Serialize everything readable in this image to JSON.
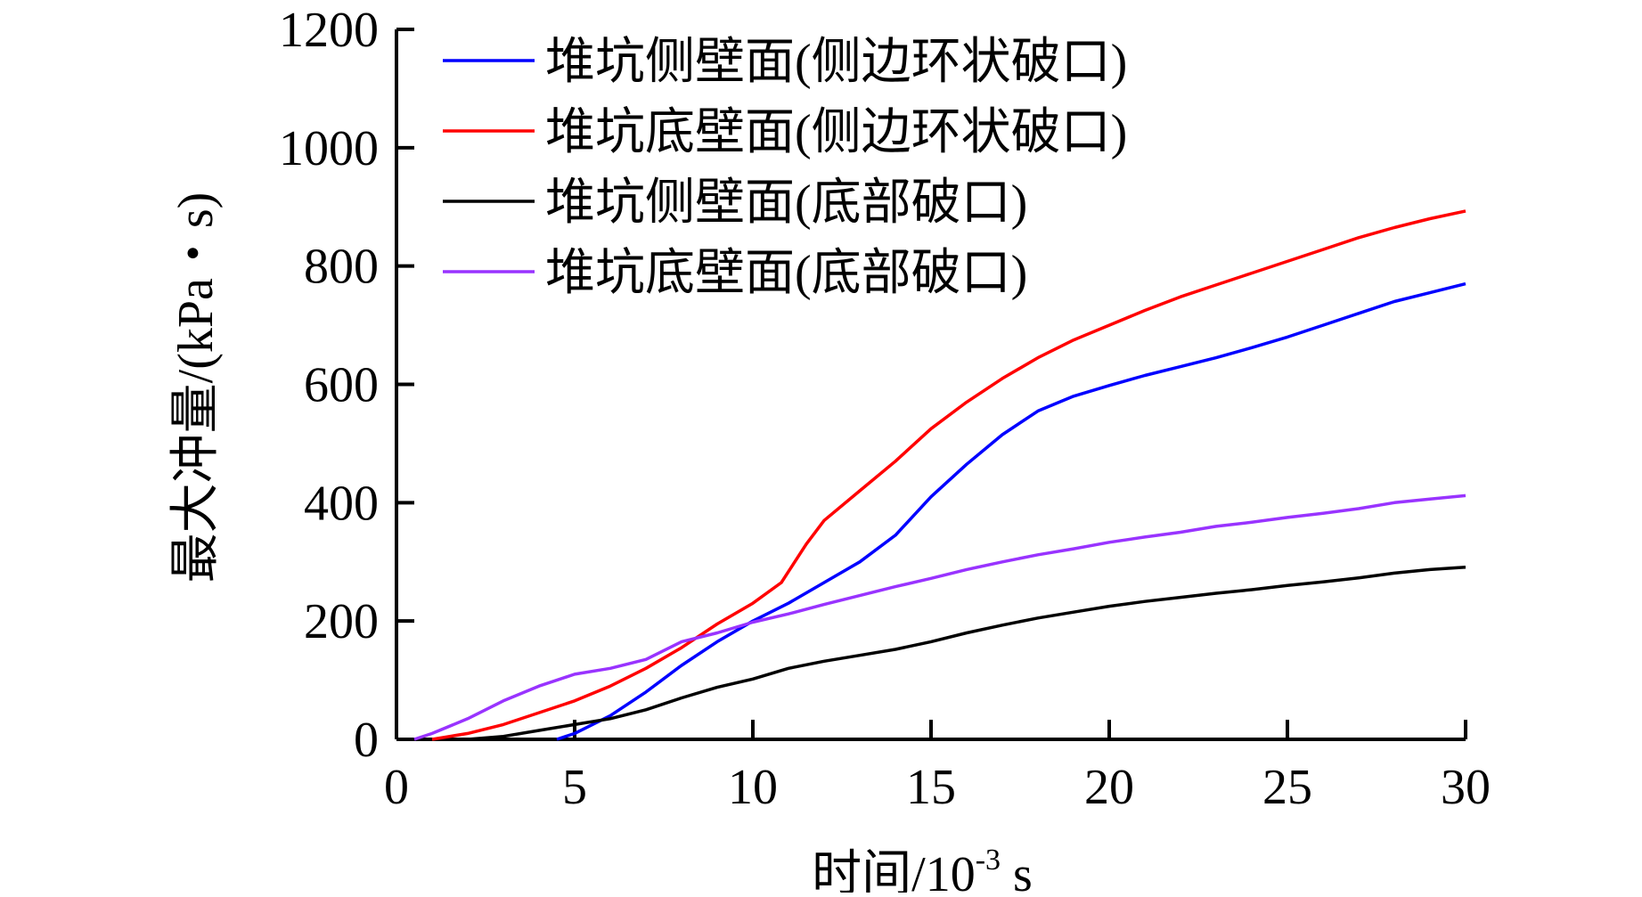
{
  "chart_data": {
    "type": "line",
    "xlabel": "时间/10",
    "xlabel_exponent": "-3",
    "xlabel_unit": " s",
    "ylabel": "最大冲量/(kPa・s)",
    "xlim": [
      0,
      30
    ],
    "ylim": [
      0,
      1200
    ],
    "x_ticks": [
      "0",
      "5",
      "10",
      "15",
      "20",
      "25",
      "30"
    ],
    "y_ticks": [
      "0",
      "200",
      "400",
      "600",
      "800",
      "1000",
      "1200"
    ],
    "grid": false,
    "legend_position": "top-left",
    "series": [
      {
        "name": "堆坑侧壁面(侧边环状破口)",
        "color": "#0000ff",
        "x": [
          4.5,
          5,
          6,
          7,
          8,
          9,
          10,
          11,
          12,
          13,
          14,
          15,
          16,
          17,
          18,
          19,
          20,
          21,
          22,
          23,
          24,
          25,
          26,
          27,
          28,
          29,
          30
        ],
        "y": [
          0,
          10,
          40,
          80,
          125,
          165,
          200,
          230,
          265,
          300,
          345,
          410,
          465,
          515,
          555,
          580,
          598,
          615,
          630,
          645,
          662,
          680,
          700,
          720,
          740,
          755,
          770
        ]
      },
      {
        "name": "堆坑底壁面(侧边环状破口)",
        "color": "#ff0000",
        "x": [
          1,
          2,
          3,
          4,
          5,
          6,
          7,
          8,
          9,
          10,
          10.8,
          11.5,
          12,
          13,
          14,
          15,
          16,
          17,
          18,
          19,
          20,
          21,
          22,
          23,
          24,
          25,
          26,
          27,
          28,
          29,
          30
        ],
        "y": [
          0,
          10,
          25,
          45,
          65,
          90,
          120,
          155,
          195,
          230,
          265,
          330,
          370,
          420,
          470,
          525,
          570,
          610,
          645,
          675,
          700,
          725,
          748,
          768,
          788,
          808,
          828,
          848,
          865,
          880,
          893
        ]
      },
      {
        "name": "堆坑侧壁面(底部破口)",
        "color": "#000000",
        "x": [
          2,
          3,
          4,
          5,
          6,
          7,
          8,
          9,
          10,
          11,
          12,
          13,
          14,
          15,
          16,
          17,
          18,
          19,
          20,
          21,
          22,
          23,
          24,
          25,
          26,
          27,
          28,
          29,
          30
        ],
        "y": [
          0,
          5,
          15,
          25,
          35,
          50,
          70,
          88,
          102,
          120,
          132,
          142,
          152,
          165,
          180,
          193,
          205,
          215,
          225,
          233,
          240,
          247,
          253,
          260,
          266,
          273,
          281,
          287,
          291
        ]
      },
      {
        "name": "堆坑底壁面(底部破口)",
        "color": "#9933ff",
        "x": [
          0.5,
          1,
          2,
          3,
          4,
          5,
          6,
          7,
          8,
          9,
          10,
          11,
          12,
          13,
          14,
          15,
          16,
          17,
          18,
          19,
          20,
          21,
          22,
          23,
          24,
          25,
          26,
          27,
          28,
          29,
          30
        ],
        "y": [
          0,
          10,
          35,
          65,
          90,
          110,
          120,
          135,
          165,
          180,
          198,
          212,
          228,
          243,
          258,
          272,
          287,
          300,
          312,
          322,
          333,
          342,
          350,
          360,
          367,
          375,
          382,
          390,
          400,
          406,
          412
        ]
      }
    ]
  }
}
